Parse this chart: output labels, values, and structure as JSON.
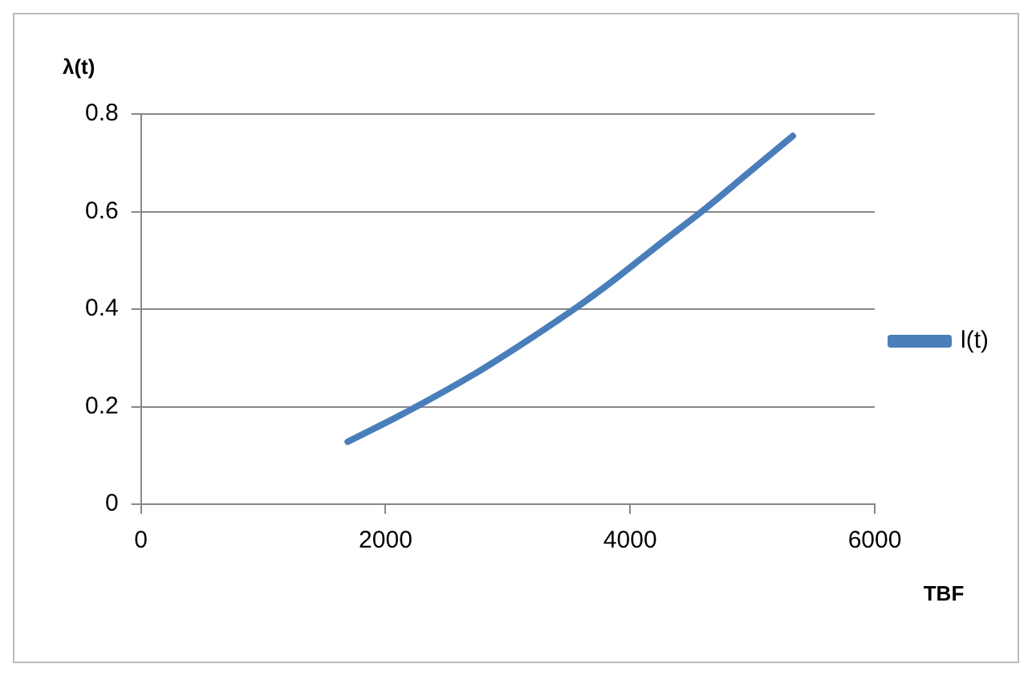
{
  "chart_data": {
    "type": "line",
    "xlabel": "TBF",
    "ylabel": "λ(t)",
    "series": [
      {
        "name": "l(t)",
        "color": "#4a7ebb",
        "x": [
          1690,
          2140,
          2720,
          3150,
          3610,
          3870,
          4250,
          4600,
          4970,
          5330
        ],
        "values": [
          0.128,
          0.185,
          0.266,
          0.334,
          0.412,
          0.46,
          0.535,
          0.603,
          0.68,
          0.755
        ]
      }
    ],
    "xlim": [
      0,
      6000
    ],
    "xticks": [
      0,
      2000,
      4000,
      6000
    ],
    "ylim": [
      0,
      0.8
    ],
    "yticks": [
      0,
      0.2,
      0.4,
      0.6,
      0.8
    ],
    "grid": "y",
    "legend": "right",
    "marker": "none",
    "line_style": "solid"
  }
}
